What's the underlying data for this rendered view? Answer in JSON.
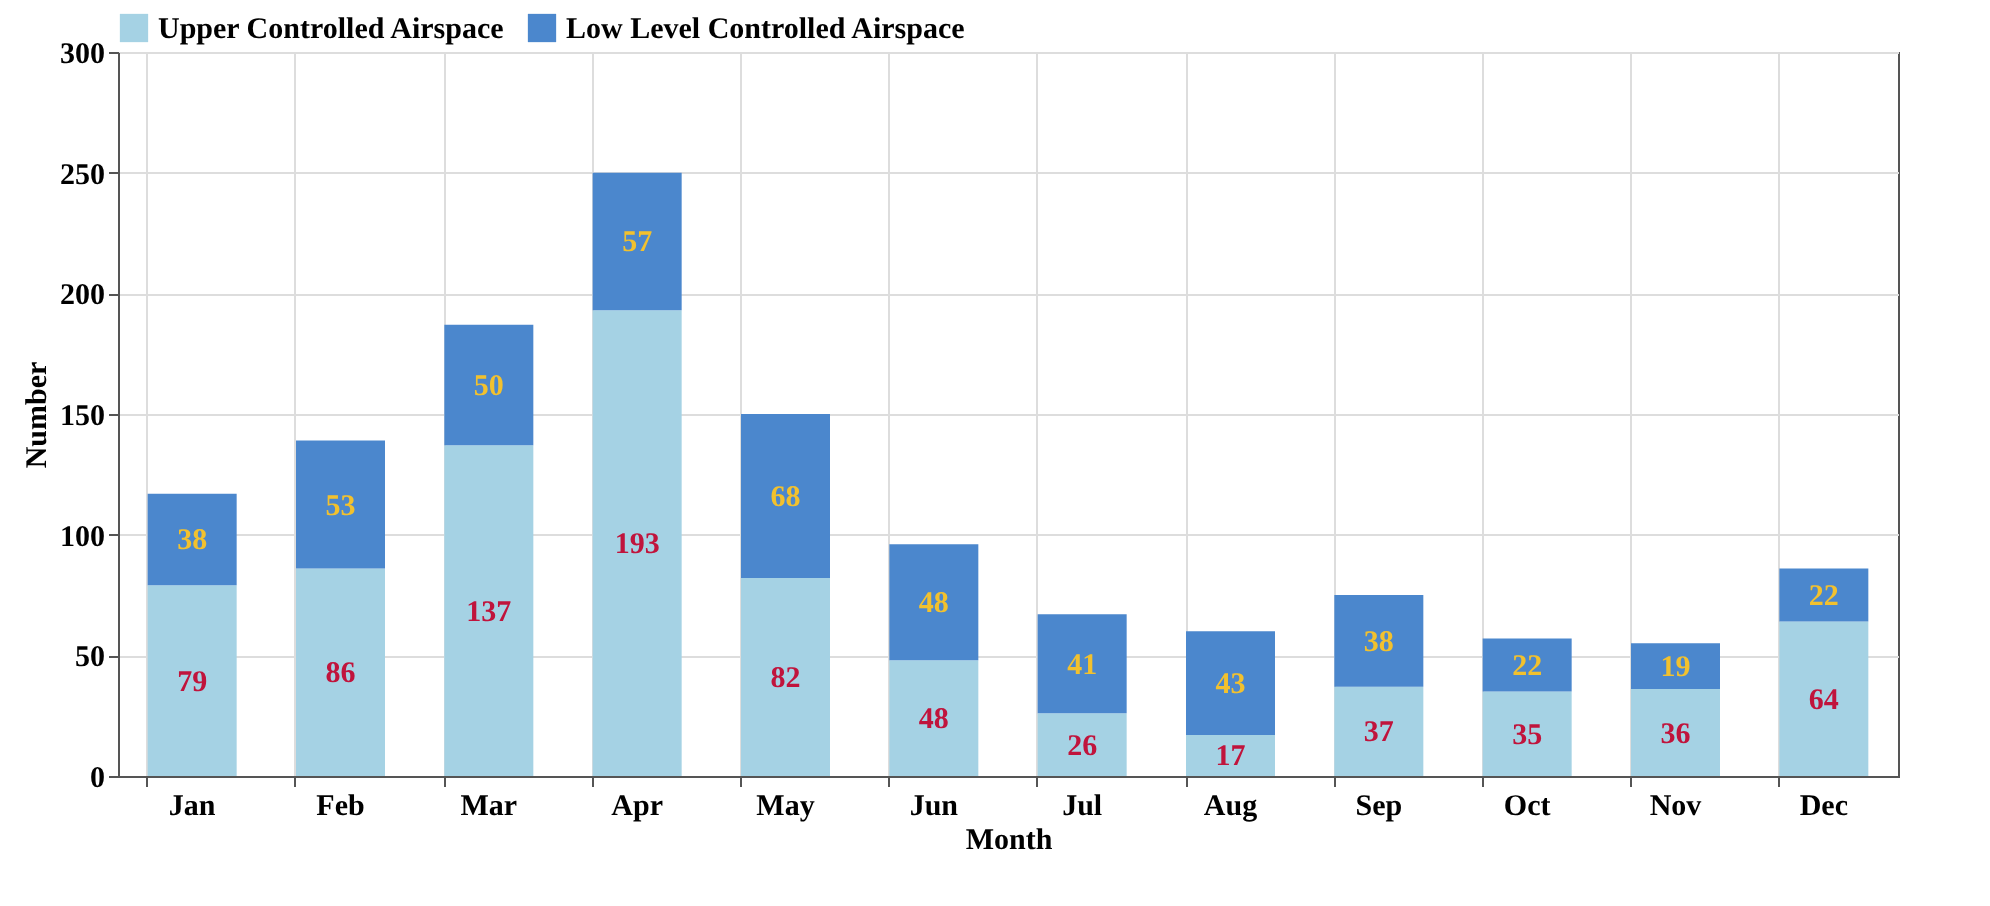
{
  "chart_data": {
    "type": "bar",
    "xlabel": "Month",
    "ylabel": "Number",
    "categories": [
      "Jan",
      "Feb",
      "Mar",
      "Apr",
      "May",
      "Jun",
      "Jul",
      "Aug",
      "Sep",
      "Oct",
      "Nov",
      "Dec"
    ],
    "series": [
      {
        "name": "Upper Controlled Airspace",
        "color": "#a5d2e4",
        "values": [
          79,
          86,
          137,
          193,
          82,
          48,
          26,
          17,
          37,
          35,
          36,
          64
        ]
      },
      {
        "name": "Low Level Controlled Airspace",
        "color": "#4b87cd",
        "values": [
          38,
          53,
          50,
          57,
          68,
          48,
          41,
          43,
          38,
          22,
          19,
          22
        ]
      }
    ],
    "stacked": true,
    "data_labels": true,
    "ylim": [
      0,
      300
    ],
    "yticks": [
      0,
      50,
      100,
      150,
      200,
      250,
      300
    ],
    "grid": true,
    "legend": "top"
  }
}
